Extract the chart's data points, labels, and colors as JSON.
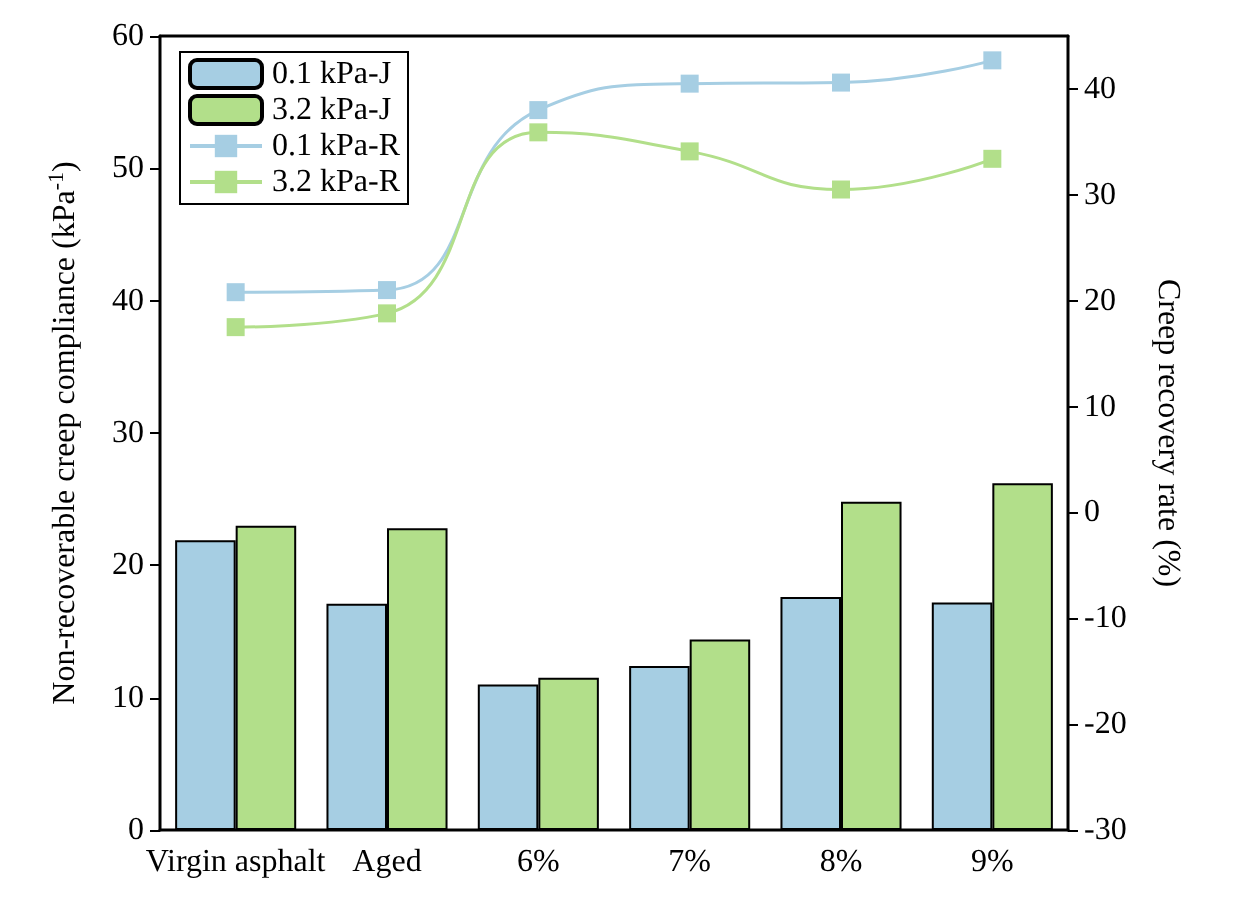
{
  "chart_data": {
    "type": "bar",
    "categories": [
      "Virgin asphalt",
      "Aged",
      "6%",
      "7%",
      "8%",
      "9%"
    ],
    "ylabel": "Non-recoverable creep compliance (kPa$^{-1}$)",
    "y2label": "Creep recovery rate (%)",
    "series": [
      {
        "name": "0.1 kPa-J",
        "color": "#a6cee3",
        "values": [
          21.9,
          17.1,
          11.0,
          12.4,
          17.6,
          17.2
        ]
      },
      {
        "name": "3.2 kPa-J",
        "color": "#b2df8a",
        "values": [
          23.0,
          22.8,
          11.5,
          14.4,
          24.8,
          26.2
        ]
      },
      {
        "name": "0.1 kPa-R",
        "type": "line",
        "axis": "y2",
        "color": "#a6cee3",
        "values": [
          20.8,
          21.0,
          38.0,
          40.5,
          40.6,
          42.7
        ]
      },
      {
        "name": "3.2 kPa-R",
        "type": "line",
        "axis": "y2",
        "color": "#b2df8a",
        "values": [
          17.5,
          18.8,
          35.9,
          34.1,
          30.5,
          33.4
        ]
      }
    ],
    "ylim": [
      0,
      60
    ],
    "yticks": [
      0,
      10,
      20,
      30,
      40,
      50,
      60
    ],
    "y2lim": [
      -30,
      45
    ],
    "y2ticks": [
      -30,
      -20,
      -10,
      0,
      10,
      20,
      30,
      40
    ],
    "grid": false,
    "legend": "top left",
    "marker": "square",
    "line_style": "solid"
  }
}
